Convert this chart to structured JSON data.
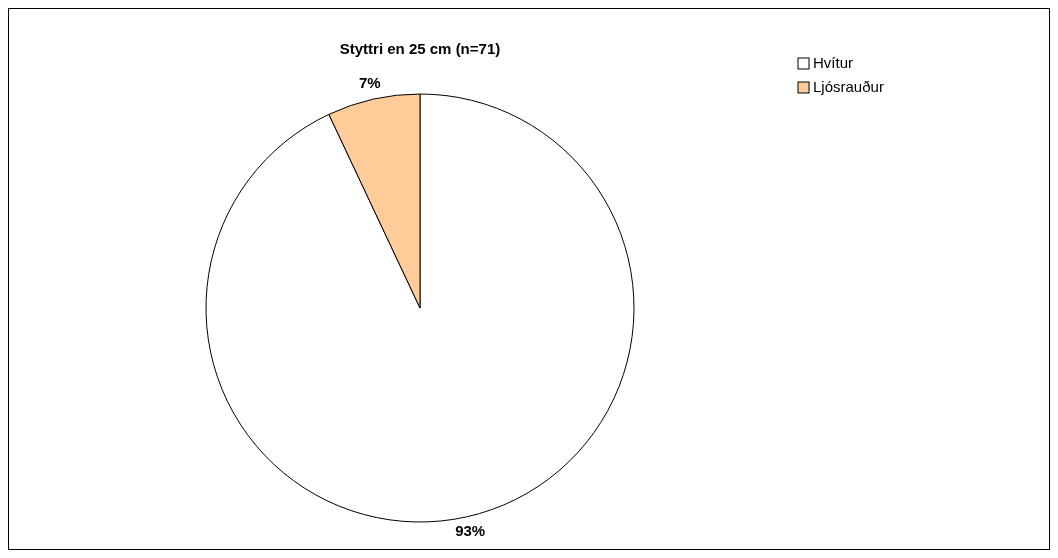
{
  "chart_data": {
    "type": "pie",
    "title": "Styttri en 25 cm (n=71)",
    "categories": [
      "Hvítur",
      "Ljósrauður"
    ],
    "values": [
      93,
      7
    ],
    "colors": [
      "#ffffff",
      "#ffcc99"
    ],
    "value_labels": [
      "93%",
      "7%"
    ],
    "legend": "top right"
  }
}
